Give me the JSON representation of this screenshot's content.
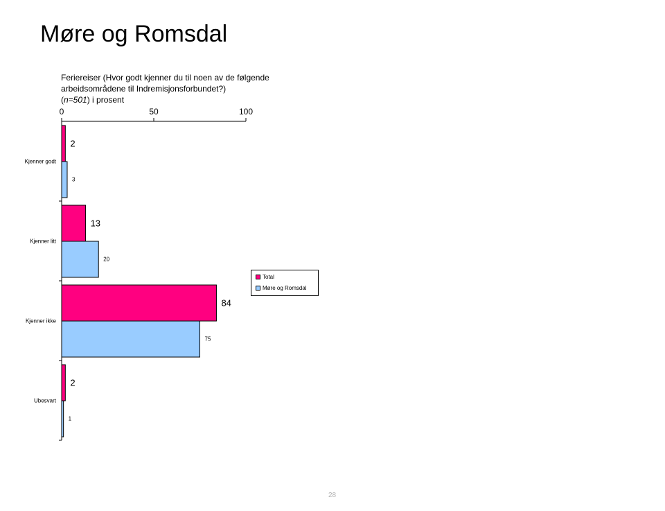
{
  "page": {
    "title": "Møre og Romsdal",
    "subtitle_lines": [
      "Feriereiser (Hvor godt kjenner du til noen av de følgende",
      "arbeidsområdene til Indremisjonsforbundet?)"
    ],
    "subtitle_n_open": "(",
    "subtitle_n": "n=501",
    "subtitle_n_close": ")  i prosent",
    "page_number": "28"
  },
  "colors": {
    "total": "#FF0080",
    "more_og_romsdal": "#99CCFF",
    "axis": "#000000"
  },
  "chart_data": {
    "type": "bar",
    "orientation": "horizontal",
    "categories": [
      "Kjenner godt",
      "Kjenner litt",
      "Kjenner ikke",
      "Ubesvart"
    ],
    "series": [
      {
        "name": "Total",
        "values": [
          2,
          13,
          84,
          2
        ]
      },
      {
        "name": "Møre og Romsdal",
        "values": [
          3,
          20,
          75,
          1
        ]
      }
    ],
    "xlim": [
      0,
      100
    ],
    "xticks": [
      0,
      50,
      100
    ],
    "x_axis_position": "top",
    "legend_position": "right",
    "grid": false
  }
}
